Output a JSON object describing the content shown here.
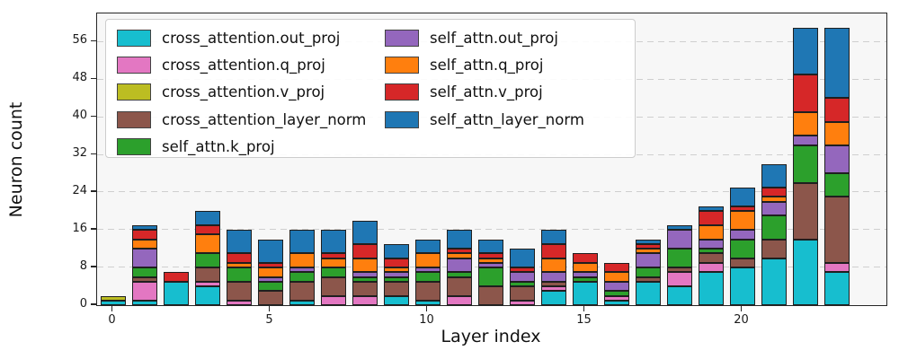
{
  "chart_data": {
    "type": "bar",
    "stacked": true,
    "xlabel": "Layer index",
    "ylabel": "Neuron count",
    "categories": [
      0,
      1,
      2,
      3,
      4,
      5,
      6,
      7,
      8,
      9,
      10,
      11,
      12,
      13,
      14,
      15,
      16,
      17,
      18,
      19,
      20,
      21,
      22,
      23
    ],
    "xticks": [
      0,
      5,
      10,
      15,
      20
    ],
    "yticks": [
      0,
      8,
      16,
      24,
      32,
      40,
      48,
      56
    ],
    "ylim": [
      0,
      62
    ],
    "grid": "horizontal-dashed",
    "legend_position": "upper left",
    "legend_columns": 2,
    "legend_col1_count": 5,
    "plot_bg": "#f7f7f7",
    "grid_color": "#cfcfcf",
    "series": [
      {
        "name": "cross_attention.out_proj",
        "color": "#17becf",
        "values": [
          1,
          1,
          5,
          4,
          0,
          0,
          1,
          0,
          0,
          2,
          1,
          0,
          0,
          0,
          3,
          5,
          1,
          5,
          4,
          7,
          8,
          10,
          14,
          7
        ]
      },
      {
        "name": "cross_attention.q_proj",
        "color": "#e377c2",
        "values": [
          0,
          4,
          0,
          1,
          1,
          0,
          0,
          2,
          2,
          0,
          0,
          2,
          0,
          1,
          1,
          0,
          1,
          0,
          3,
          2,
          0,
          0,
          0,
          2
        ]
      },
      {
        "name": "cross_attention.v_proj",
        "color": "#bcbd22",
        "values": [
          1,
          0,
          0,
          0,
          0,
          0,
          0,
          0,
          0,
          0,
          0,
          0,
          0,
          0,
          0,
          0,
          0,
          0,
          0,
          0,
          0,
          0,
          0,
          0
        ]
      },
      {
        "name": "cross_attention_layer_norm",
        "color": "#8c564b",
        "values": [
          0,
          1,
          0,
          3,
          4,
          3,
          4,
          4,
          3,
          3,
          4,
          4,
          4,
          3,
          1,
          0,
          0,
          1,
          1,
          2,
          2,
          4,
          12,
          14
        ]
      },
      {
        "name": "self_attn.k_proj",
        "color": "#2ca02c",
        "values": [
          0,
          2,
          0,
          3,
          3,
          2,
          2,
          2,
          1,
          1,
          2,
          1,
          4,
          1,
          0,
          1,
          1,
          2,
          4,
          1,
          4,
          5,
          8,
          5
        ]
      },
      {
        "name": "self_attn.out_proj",
        "color": "#9467bd",
        "values": [
          0,
          4,
          0,
          0,
          0,
          1,
          1,
          0,
          1,
          1,
          1,
          3,
          1,
          2,
          2,
          1,
          2,
          3,
          4,
          2,
          2,
          3,
          2,
          6
        ]
      },
      {
        "name": "self_attn.q_proj",
        "color": "#ff7f0e",
        "values": [
          0,
          2,
          0,
          4,
          1,
          2,
          3,
          2,
          3,
          1,
          3,
          1,
          1,
          0,
          3,
          2,
          2,
          1,
          0,
          3,
          4,
          1,
          5,
          5
        ]
      },
      {
        "name": "self_attn.v_proj",
        "color": "#d62728",
        "values": [
          0,
          2,
          2,
          2,
          2,
          1,
          0,
          1,
          3,
          2,
          0,
          1,
          1,
          1,
          3,
          2,
          2,
          1,
          0,
          3,
          1,
          2,
          8,
          5
        ]
      },
      {
        "name": "self_attn_layer_norm",
        "color": "#1f77b4",
        "values": [
          0,
          1,
          0,
          3,
          5,
          5,
          5,
          5,
          5,
          3,
          3,
          4,
          3,
          4,
          3,
          0,
          0,
          1,
          1,
          1,
          4,
          5,
          10,
          15
        ]
      }
    ]
  }
}
